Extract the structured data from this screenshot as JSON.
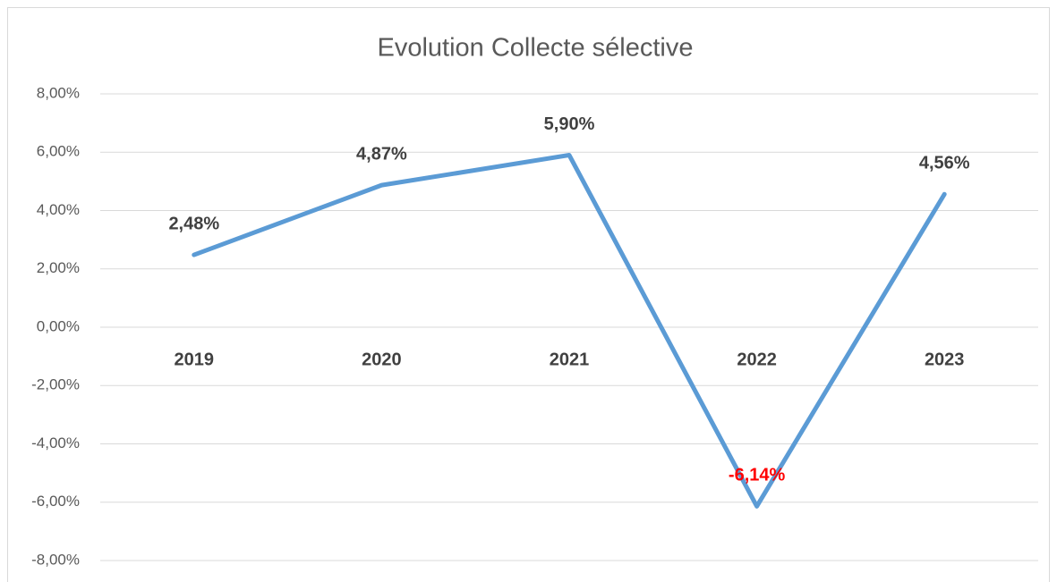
{
  "chart_data": {
    "type": "line",
    "title": "Evolution Collecte sélective",
    "categories": [
      "2019",
      "2020",
      "2021",
      "2022",
      "2023"
    ],
    "series": [
      {
        "name": "Evolution",
        "color": "#5b9bd5",
        "values": [
          2.48,
          4.87,
          5.9,
          -6.14,
          4.56
        ],
        "value_labels": [
          "2,48%",
          "4,87%",
          "5,90%",
          "-6,14%",
          "4,56%"
        ],
        "value_label_colors": [
          "#404040",
          "#404040",
          "#404040",
          "#ff0000",
          "#404040"
        ]
      }
    ],
    "ylim": [
      -8,
      8
    ],
    "yticks": [
      {
        "value": -8,
        "label": "-8,00%"
      },
      {
        "value": -6,
        "label": "-6,00%"
      },
      {
        "value": -4,
        "label": "-4,00%"
      },
      {
        "value": -2,
        "label": "-2,00%"
      },
      {
        "value": 0,
        "label": "0,00%"
      },
      {
        "value": 2,
        "label": "2,00%"
      },
      {
        "value": 4,
        "label": "4,00%"
      },
      {
        "value": 6,
        "label": "6,00%"
      },
      {
        "value": 8,
        "label": "8,00%"
      }
    ],
    "grid": true
  }
}
